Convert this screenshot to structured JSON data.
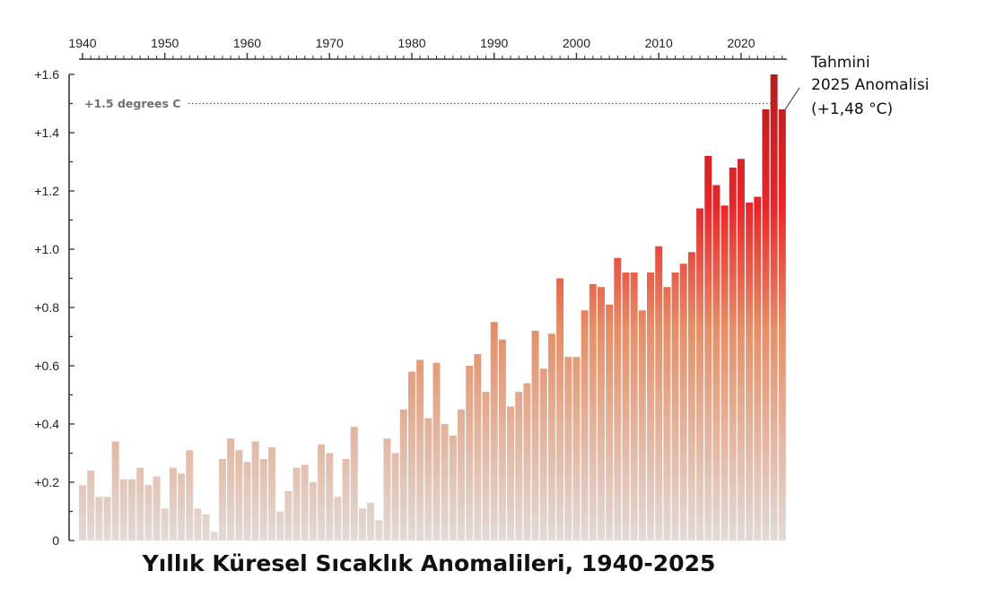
{
  "chart_data": {
    "type": "bar",
    "title": "Yıllık Küresel Sıcaklık Anomalileri, 1940-2025",
    "xlabel": "",
    "ylabel": "",
    "x_ticks": [
      "1940",
      "1950",
      "1960",
      "1970",
      "1980",
      "1990",
      "2000",
      "2010",
      "2020"
    ],
    "y_ticks": [
      "0",
      "+0.2",
      "+0.4",
      "+0.6",
      "+0.8",
      "+1.0",
      "+1.2",
      "+1.4",
      "+1.6"
    ],
    "ylim": [
      0,
      1.6
    ],
    "x_range": [
      1940,
      2025
    ],
    "grid": false,
    "categories": [
      1940,
      1941,
      1942,
      1943,
      1944,
      1945,
      1946,
      1947,
      1948,
      1949,
      1950,
      1951,
      1952,
      1953,
      1954,
      1955,
      1956,
      1957,
      1958,
      1959,
      1960,
      1961,
      1962,
      1963,
      1964,
      1965,
      1966,
      1967,
      1968,
      1969,
      1970,
      1971,
      1972,
      1973,
      1974,
      1975,
      1976,
      1977,
      1978,
      1979,
      1980,
      1981,
      1982,
      1983,
      1984,
      1985,
      1986,
      1987,
      1988,
      1989,
      1990,
      1991,
      1992,
      1993,
      1994,
      1995,
      1996,
      1997,
      1998,
      1999,
      2000,
      2001,
      2002,
      2003,
      2004,
      2005,
      2006,
      2007,
      2008,
      2009,
      2010,
      2011,
      2012,
      2013,
      2014,
      2015,
      2016,
      2017,
      2018,
      2019,
      2020,
      2021,
      2022,
      2023,
      2024,
      2025
    ],
    "values": [
      0.19,
      0.24,
      0.15,
      0.15,
      0.34,
      0.21,
      0.21,
      0.25,
      0.19,
      0.22,
      0.11,
      0.25,
      0.23,
      0.31,
      0.11,
      0.09,
      0.03,
      0.28,
      0.35,
      0.31,
      0.27,
      0.34,
      0.28,
      0.32,
      0.1,
      0.17,
      0.25,
      0.26,
      0.2,
      0.33,
      0.3,
      0.15,
      0.28,
      0.39,
      0.11,
      0.13,
      0.07,
      0.35,
      0.3,
      0.45,
      0.58,
      0.62,
      0.42,
      0.61,
      0.4,
      0.36,
      0.45,
      0.6,
      0.64,
      0.51,
      0.75,
      0.69,
      0.46,
      0.51,
      0.54,
      0.72,
      0.59,
      0.71,
      0.9,
      0.63,
      0.63,
      0.79,
      0.88,
      0.87,
      0.81,
      0.97,
      0.92,
      0.92,
      0.79,
      0.92,
      1.01,
      0.87,
      0.92,
      0.95,
      0.99,
      1.14,
      1.32,
      1.22,
      1.15,
      1.28,
      1.31,
      1.16,
      1.18,
      1.48,
      1.6,
      1.48
    ],
    "reference_line": {
      "value": 1.5,
      "label": "+1.5 degrees C"
    },
    "annotation": {
      "lines": [
        "Tahmini",
        "2025 Anomalisi",
        "(+1,48 °C)"
      ],
      "target_year": 2025
    },
    "colors": {
      "low": "#e2dad6",
      "mid": "#e59068",
      "high": "#e8262a",
      "top": "#b31e1c",
      "axis": "#333333"
    }
  }
}
